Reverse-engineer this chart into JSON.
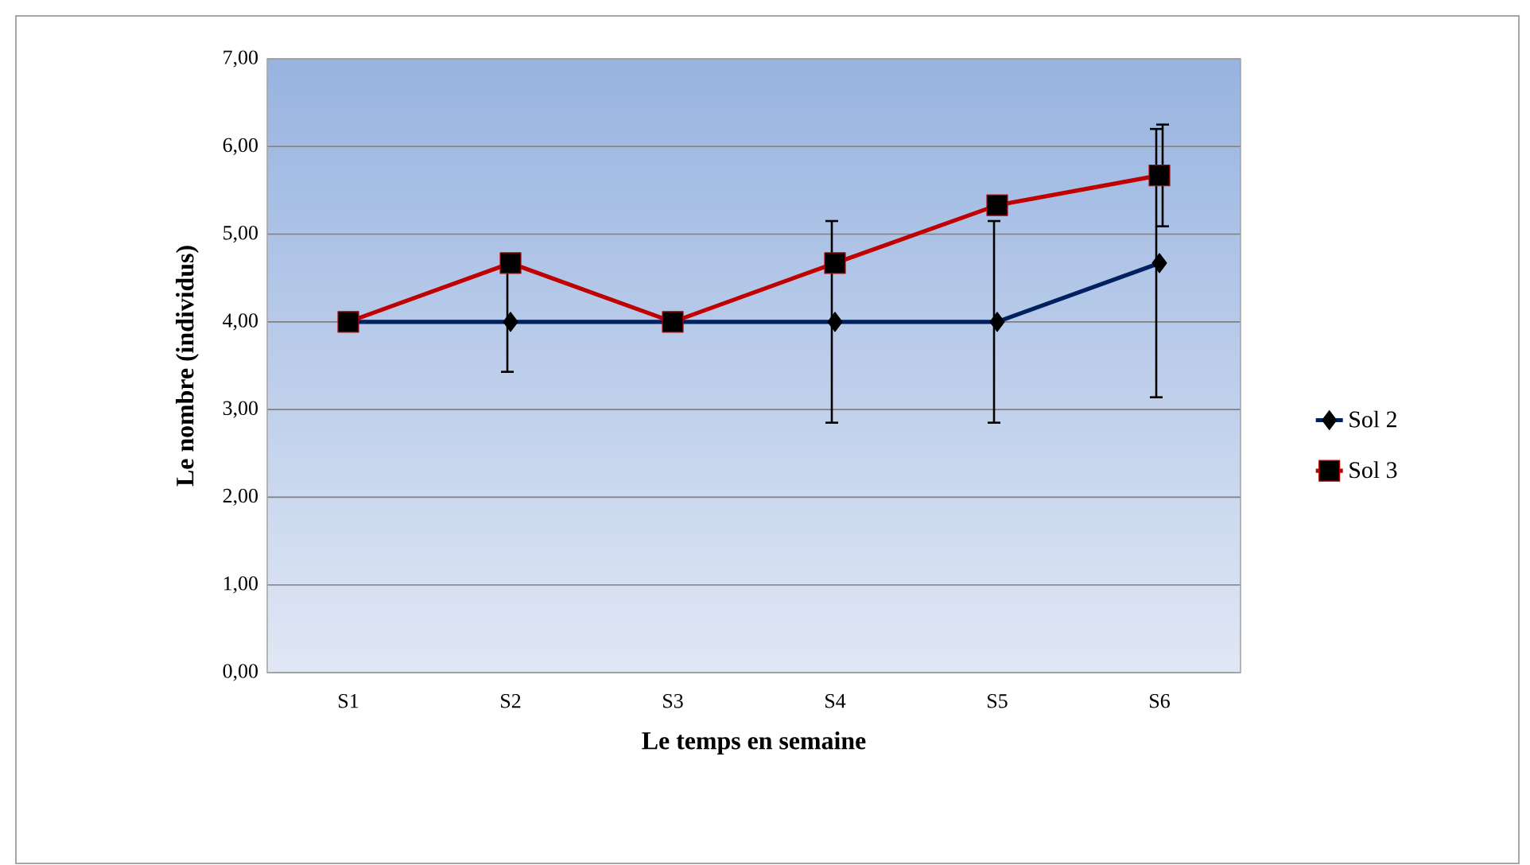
{
  "chart_data": {
    "type": "line",
    "xlabel": "Le temps en semaine",
    "ylabel": "Le nombre (individus)",
    "categories": [
      "S1",
      "S2",
      "S3",
      "S4",
      "S5",
      "S6"
    ],
    "series": [
      {
        "name": "Sol 2",
        "color": "#002060",
        "marker": "diamond",
        "values": [
          4,
          4,
          4,
          4,
          4,
          4.67
        ],
        "errors": [
          null,
          0.57,
          null,
          1.15,
          1.15,
          1.53
        ]
      },
      {
        "name": "Sol 3",
        "color": "#c00000",
        "marker": "square",
        "values": [
          4,
          4.67,
          4,
          4.67,
          5.33,
          5.67
        ],
        "errors": [
          null,
          null,
          null,
          null,
          null,
          0.58
        ]
      }
    ],
    "ylim": [
      0,
      7
    ],
    "yticks": [
      {
        "value": 0,
        "label": "0,00"
      },
      {
        "value": 1,
        "label": "1,00"
      },
      {
        "value": 2,
        "label": "2,00"
      },
      {
        "value": 3,
        "label": "3,00"
      },
      {
        "value": 4,
        "label": "4,00"
      },
      {
        "value": 5,
        "label": "5,00"
      },
      {
        "value": 6,
        "label": "6,00"
      },
      {
        "value": 7,
        "label": "7,00"
      }
    ],
    "grid": "y",
    "legend": "right",
    "line_style": "solid"
  }
}
